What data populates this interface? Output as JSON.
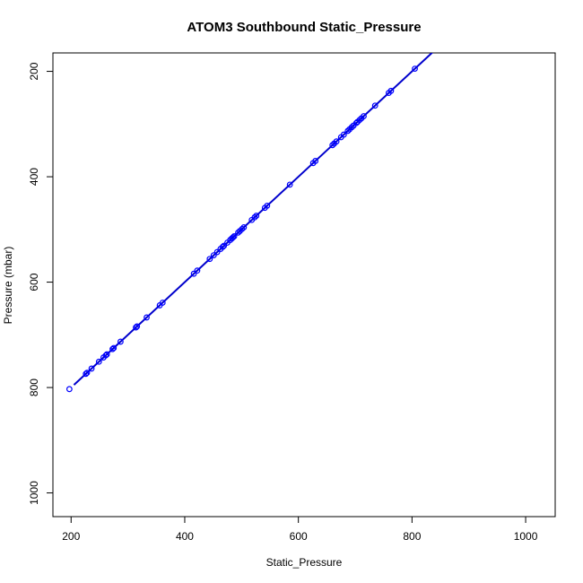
{
  "chart_data": {
    "type": "scatter",
    "title": "ATOM3 Southbound Static_Pressure",
    "xlabel": "Static_Pressure",
    "ylabel": "Pressure (mbar)",
    "xlim": [
      168,
      1052
    ],
    "ylim": [
      1045,
      165
    ],
    "y_reversed": true,
    "grid": false,
    "xticks": [
      200,
      400,
      600,
      800,
      1000
    ],
    "yticks": [
      200,
      400,
      600,
      800,
      1000
    ],
    "colors": {
      "points": "#0000ff",
      "fit_line": "#0000cc"
    },
    "fit_line": {
      "x": [
        205,
        840
      ],
      "y": [
        795,
        160
      ]
    },
    "points": {
      "x": [
        197,
        226,
        228,
        236,
        249,
        257,
        261,
        263,
        273,
        275,
        287,
        314,
        316,
        333,
        356,
        361,
        416,
        422,
        444,
        451,
        457,
        463,
        467,
        469,
        475,
        480,
        483,
        485,
        487,
        494,
        497,
        501,
        504,
        518,
        523,
        526,
        541,
        545,
        585,
        626,
        630,
        660,
        663,
        667,
        675,
        680,
        687,
        690,
        694,
        697,
        702,
        704,
        708,
        711,
        715,
        735,
        759,
        763,
        805
      ],
      "y": [
        803,
        774,
        772,
        764,
        751,
        743,
        739,
        737,
        727,
        725,
        713,
        686,
        684,
        667,
        644,
        639,
        584,
        578,
        556,
        549,
        543,
        537,
        533,
        531,
        525,
        520,
        517,
        515,
        513,
        506,
        503,
        499,
        496,
        482,
        477,
        474,
        459,
        455,
        415,
        374,
        370,
        340,
        337,
        333,
        325,
        320,
        313,
        310,
        306,
        303,
        298,
        296,
        292,
        289,
        285,
        265,
        241,
        237,
        195
      ]
    }
  }
}
